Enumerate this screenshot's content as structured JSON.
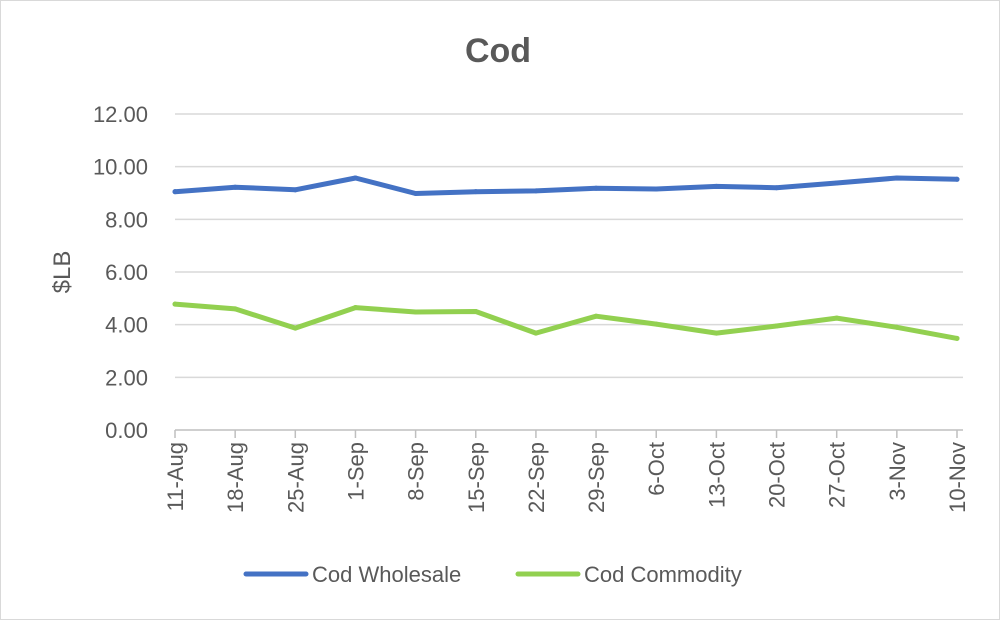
{
  "chart_data": {
    "type": "line",
    "title": "Cod",
    "xlabel": "",
    "ylabel": "$LB",
    "ylim": [
      0,
      12
    ],
    "yticks": [
      "0.00",
      "2.00",
      "4.00",
      "6.00",
      "8.00",
      "10.00",
      "12.00"
    ],
    "grid": true,
    "legend_position": "bottom",
    "categories": [
      "11-Aug",
      "18-Aug",
      "25-Aug",
      "1-Sep",
      "8-Sep",
      "15-Sep",
      "22-Sep",
      "29-Sep",
      "6-Oct",
      "13-Oct",
      "20-Oct",
      "27-Oct",
      "3-Nov",
      "10-Nov"
    ],
    "series": [
      {
        "name": "Cod Wholesale",
        "color": "#4472c4",
        "values": [
          9.05,
          9.22,
          9.12,
          9.57,
          8.98,
          9.05,
          9.08,
          9.18,
          9.15,
          9.25,
          9.2,
          9.38,
          9.57,
          9.52
        ]
      },
      {
        "name": "Cod Commodity",
        "color": "#92d050",
        "values": [
          4.78,
          4.6,
          3.87,
          4.65,
          4.48,
          4.5,
          3.68,
          4.32,
          4.02,
          3.68,
          3.95,
          4.25,
          3.9,
          3.48
        ]
      }
    ]
  }
}
